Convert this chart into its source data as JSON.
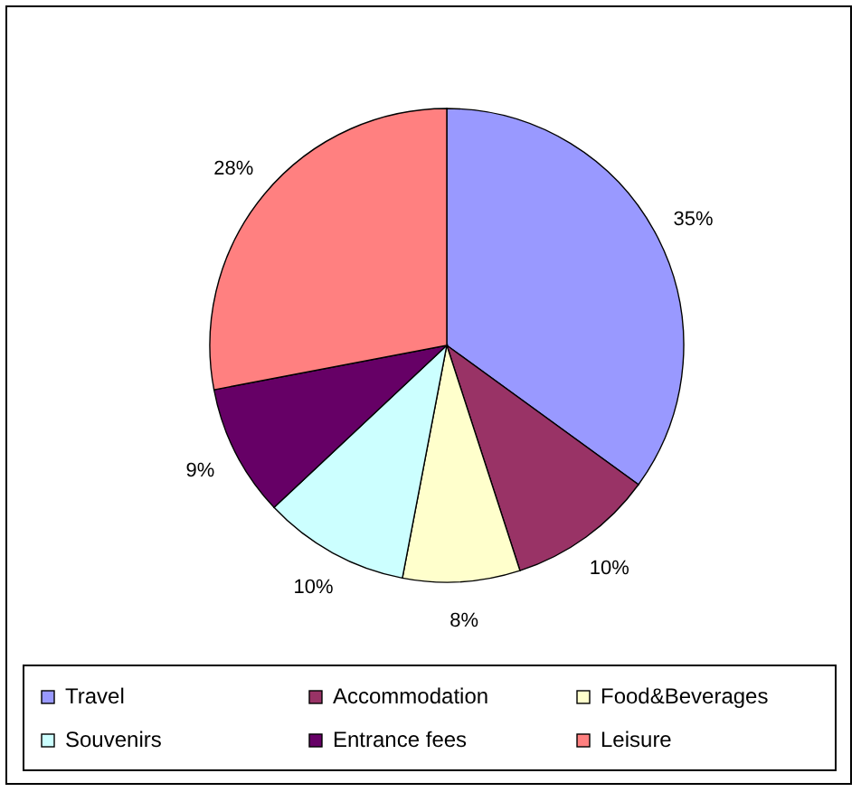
{
  "chart_data": {
    "type": "pie",
    "categories": [
      "Travel",
      "Accommodation",
      "Food&Beverages",
      "Souvenirs",
      "Entrance fees",
      "Leisure"
    ],
    "values": [
      35,
      10,
      8,
      10,
      9,
      28
    ],
    "value_labels": [
      "35%",
      "10%",
      "8%",
      "10%",
      "9%",
      "28%"
    ],
    "colors": [
      "#9999ff",
      "#993366",
      "#ffffcc",
      "#ccffff",
      "#660066",
      "#ff8080"
    ],
    "legend": "bottom"
  }
}
